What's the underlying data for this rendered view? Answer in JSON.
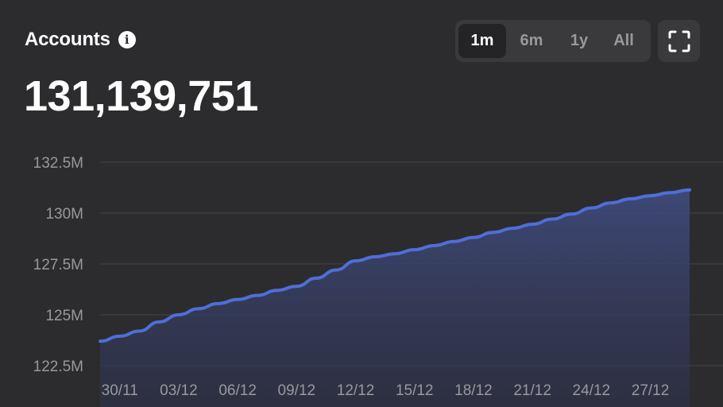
{
  "header": {
    "title": "Accounts",
    "info_icon": "info-icon",
    "value": "131,139,751"
  },
  "range_selector": {
    "options": [
      "1m",
      "6m",
      "1y",
      "All"
    ],
    "selected": "1m"
  },
  "fullscreen_icon": "fullscreen-icon",
  "colors": {
    "background": "#2c2c2e",
    "line": "#4f6ed8",
    "area_top": "#3e4a7a",
    "grid": "#3f3f42",
    "tick_text": "#98989d"
  },
  "chart_data": {
    "type": "area",
    "x": [
      "29/11",
      "30/11",
      "01/12",
      "02/12",
      "03/12",
      "04/12",
      "05/12",
      "06/12",
      "07/12",
      "08/12",
      "09/12",
      "10/12",
      "11/12",
      "12/12",
      "13/12",
      "14/12",
      "15/12",
      "16/12",
      "17/12",
      "18/12",
      "19/12",
      "20/12",
      "21/12",
      "22/12",
      "23/12",
      "24/12",
      "25/12",
      "26/12",
      "27/12",
      "28/12",
      "29/12"
    ],
    "x_tick_labels": [
      "30/11",
      "03/12",
      "06/12",
      "09/12",
      "12/12",
      "15/12",
      "18/12",
      "21/12",
      "24/12",
      "27/12"
    ],
    "series": [
      {
        "values": [
          123.7,
          123.95,
          124.2,
          124.65,
          125.0,
          125.3,
          125.55,
          125.75,
          125.95,
          126.2,
          126.4,
          126.8,
          127.2,
          127.65,
          127.85,
          128.0,
          128.2,
          128.4,
          128.6,
          128.8,
          129.05,
          129.25,
          129.45,
          129.7,
          129.95,
          130.25,
          130.5,
          130.7,
          130.85,
          131.0,
          131.14
        ]
      }
    ],
    "y_ticks": [
      "132.5M",
      "130M",
      "127.5M",
      "125M",
      "122.5M"
    ],
    "y_tick_values": [
      132.5,
      130,
      127.5,
      125,
      122.5
    ],
    "ylim": [
      122.5,
      132.5
    ],
    "unit": "M",
    "grid": true
  }
}
